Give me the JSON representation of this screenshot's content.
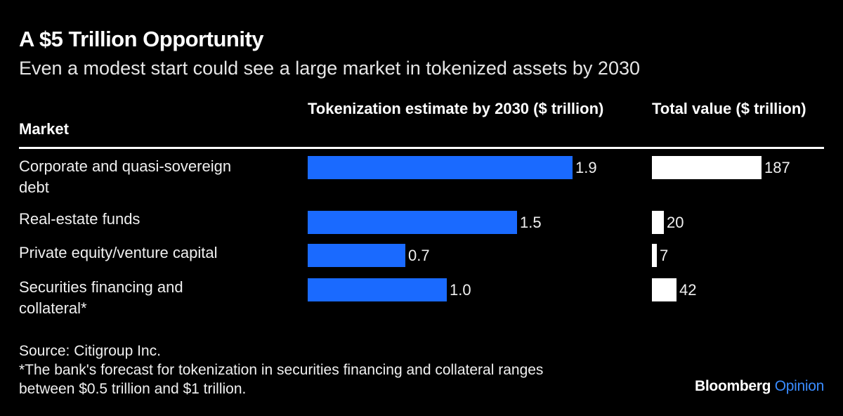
{
  "title": "A $5 Trillion Opportunity",
  "subtitle": "Even a modest start could see a large market in tokenized assets by 2030",
  "headers": {
    "market": "Market",
    "token": "Tokenization estimate by 2030 ($ trillion)",
    "total": "Total value ($ trillion)"
  },
  "rows": [
    {
      "label_lines": [
        "Corporate and quasi-sovereign",
        "debt"
      ],
      "token_label": "1.9",
      "total_label": "187"
    },
    {
      "label_lines": [
        "Real-estate funds"
      ],
      "token_label": "1.5",
      "total_label": "20"
    },
    {
      "label_lines": [
        "Private equity/venture capital"
      ],
      "token_label": "0.7",
      "total_label": "7"
    },
    {
      "label_lines": [
        "Securities financing and",
        "collateral*"
      ],
      "token_label": "1.0",
      "total_label": "42"
    }
  ],
  "footer": {
    "source": "Source: Citigroup Inc.",
    "note_lines": [
      "*The bank's forecast for tokenization in securities financing and collateral ranges",
      "between $0.5 trillion and $1 trillion."
    ],
    "brand_main": "Bloomberg",
    "brand_sub": "Opinion"
  },
  "colors": {
    "background": "#000000",
    "token_bar": "#1a6aff",
    "total_bar": "#ffffff",
    "brand_accent": "#3a8cff"
  },
  "chart_data": {
    "type": "table",
    "columns": [
      "Market",
      "Tokenization estimate by 2030 ($ trillion)",
      "Total value ($ trillion)"
    ],
    "categories": [
      "Corporate and quasi-sovereign debt",
      "Real-estate funds",
      "Private equity/venture capital",
      "Securities financing and collateral*"
    ],
    "series": [
      {
        "name": "Tokenization estimate by 2030 ($ trillion)",
        "values": [
          1.9,
          1.5,
          0.7,
          1.0
        ]
      },
      {
        "name": "Total value ($ trillion)",
        "values": [
          187,
          20,
          7,
          42
        ]
      }
    ]
  }
}
